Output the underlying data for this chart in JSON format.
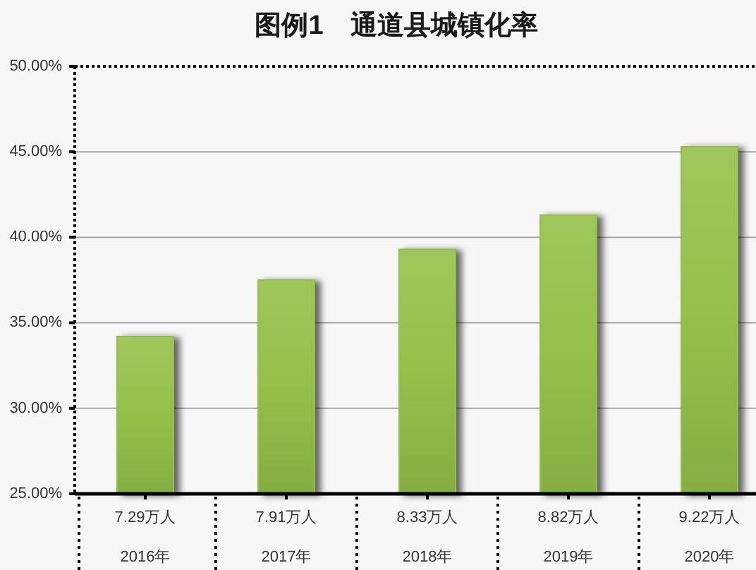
{
  "chart_data": {
    "type": "bar",
    "title": "图例1　通道县城镇化率",
    "categories": [
      "2016年",
      "2017年",
      "2018年",
      "2019年",
      "2020年"
    ],
    "values": [
      34.2,
      37.5,
      39.3,
      41.3,
      45.3
    ],
    "color": "#94c04a",
    "ylim": [
      25,
      50
    ],
    "yticks": [
      {
        "value": 25,
        "label": "25.00%"
      },
      {
        "value": 30,
        "label": "30.00%"
      },
      {
        "value": 35,
        "label": "35.00%"
      },
      {
        "value": 40,
        "label": "40.00%"
      },
      {
        "value": 45,
        "label": "45.00%"
      },
      {
        "value": 50,
        "label": "50.00%"
      }
    ],
    "grid": "y",
    "annotations": [
      {
        "text": "7.29万人",
        "x": "2016年"
      },
      {
        "text": "7.91万人",
        "x": "2017年"
      },
      {
        "text": "8.33万人",
        "x": "2018年"
      },
      {
        "text": "8.82万人",
        "x": "2019年"
      },
      {
        "text": "9.22万人",
        "x": "2020年"
      }
    ]
  }
}
